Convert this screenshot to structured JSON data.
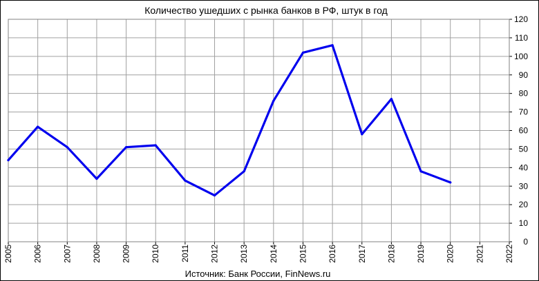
{
  "chart_data": {
    "type": "line",
    "title": "Количество  ушедших  с рынка  банков  в РФ, штук в год",
    "source": "Источник: Банк России, FinNews.ru",
    "xlabel": "",
    "ylabel": "",
    "x_ticks": [
      "2005",
      "2006",
      "2007",
      "2008",
      "2009",
      "2010",
      "2011",
      "2012",
      "2013",
      "2014",
      "2015",
      "2016",
      "2017",
      "2018",
      "2019",
      "2020",
      "2021",
      "2022"
    ],
    "y_ticks": [
      "0",
      "10",
      "20",
      "30",
      "40",
      "50",
      "60",
      "70",
      "80",
      "90",
      "100",
      "110",
      "120"
    ],
    "xlim": [
      2005,
      2022
    ],
    "ylim": [
      0,
      120
    ],
    "y_axis_side": "right",
    "grid": true,
    "legend": "none",
    "series": [
      {
        "color": "#0000ee",
        "x": [
          2005,
          2006,
          2007,
          2008,
          2009,
          2010,
          2011,
          2012,
          2013,
          2014,
          2015,
          2016,
          2017,
          2018,
          2019,
          2020
        ],
        "values": [
          44,
          62,
          51,
          34,
          51,
          52,
          33,
          25,
          38,
          76,
          102,
          106,
          58,
          77,
          38,
          32
        ]
      }
    ]
  }
}
